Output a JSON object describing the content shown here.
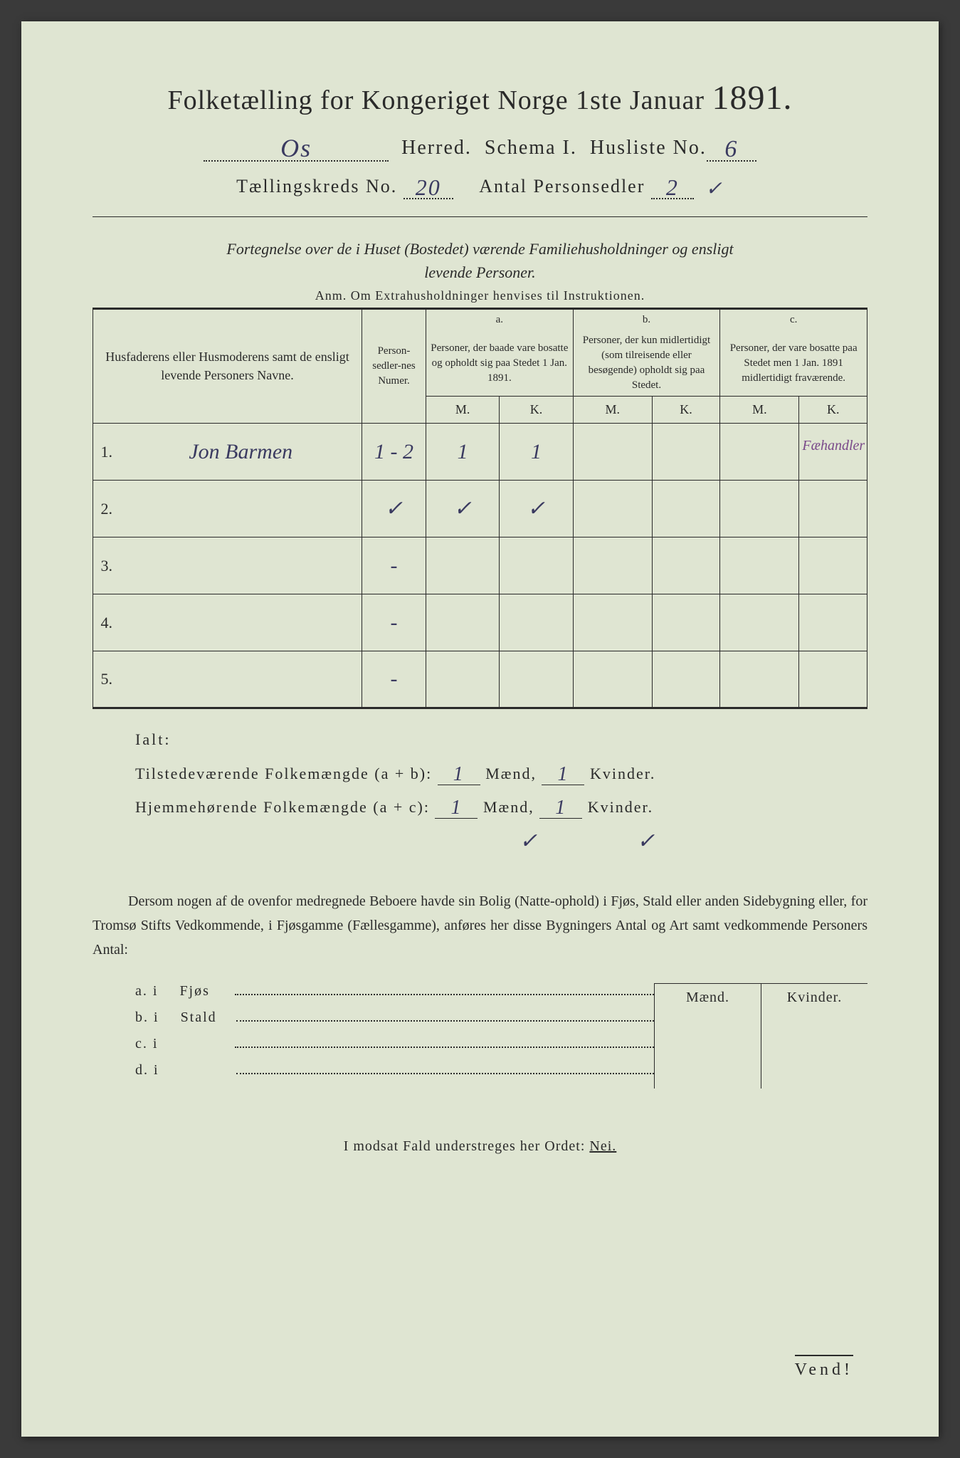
{
  "colors": {
    "paper": "#dfe5d2",
    "ink": "#2a2a2a",
    "handwriting": "#3a3a60",
    "margin_note": "#7a4a8a"
  },
  "header": {
    "title_prefix": "Folketælling for Kongeriget Norge 1ste Januar",
    "year": "1891.",
    "herred_label": "Herred.",
    "herred_value": "Os",
    "schema_label": "Schema I.",
    "husliste_label": "Husliste No.",
    "husliste_value": "6",
    "kreds_label": "Tællingskreds No.",
    "kreds_value": "20",
    "antal_label": "Antal Personsedler",
    "antal_value": "2",
    "antal_check": "✓"
  },
  "subtitle": {
    "line1": "Fortegnelse over de i Huset (Bostedet) værende Familiehusholdninger og ensligt",
    "line2": "levende Personer.",
    "anm": "Anm.  Om Extrahusholdninger henvises til Instruktionen."
  },
  "table": {
    "col_names": "Husfaderens eller Husmoderens samt de ensligt levende Personers Navne.",
    "col_numer": "Person-sedler-nes Numer.",
    "col_a_top": "a.",
    "col_a": "Personer, der baade vare bosatte og opholdt sig paa Stedet 1 Jan. 1891.",
    "col_b_top": "b.",
    "col_b": "Personer, der kun midlertidigt (som tilreisende eller besøgende) opholdt sig paa Stedet.",
    "col_c_top": "c.",
    "col_c": "Personer, der vare bosatte paa Stedet men 1 Jan. 1891 midlertidigt fraværende.",
    "m": "M.",
    "k": "K.",
    "rows": [
      {
        "n": "1.",
        "name": "Jon Barmen",
        "numer": "1 - 2",
        "aM": "1",
        "aK": "1",
        "bM": "",
        "bK": "",
        "cM": "",
        "cK": "",
        "margin": "Fæhandler"
      },
      {
        "n": "2.",
        "name": "",
        "numer": "✓",
        "aM": "✓",
        "aK": "✓",
        "bM": "",
        "bK": "",
        "cM": "",
        "cK": "",
        "margin": ""
      },
      {
        "n": "3.",
        "name": "",
        "numer": "-",
        "aM": "",
        "aK": "",
        "bM": "",
        "bK": "",
        "cM": "",
        "cK": "",
        "margin": ""
      },
      {
        "n": "4.",
        "name": "",
        "numer": "-",
        "aM": "",
        "aK": "",
        "bM": "",
        "bK": "",
        "cM": "",
        "cK": "",
        "margin": ""
      },
      {
        "n": "5.",
        "name": "",
        "numer": "-",
        "aM": "",
        "aK": "",
        "bM": "",
        "bK": "",
        "cM": "",
        "cK": "",
        "margin": ""
      }
    ]
  },
  "totals": {
    "ialt": "Ialt:",
    "line1_a": "Tilstedeværende Folkemængde (a + b):",
    "line2_a": "Hjemmehørende Folkemængde (a + c):",
    "mend": "Mænd,",
    "kvinder": "Kvinder.",
    "v1m": "1",
    "v1k": "1",
    "v2m": "1",
    "v2k": "1",
    "check1": "✓",
    "check2": "✓"
  },
  "paragraph": "Dersom nogen af de ovenfor medregnede Beboere havde sin Bolig (Natte-ophold) i Fjøs, Stald eller anden Sidebygning eller, for Tromsø Stifts Vedkommende, i Fjøsgamme (Fællesgamme), anføres her disse Bygningers Antal og Art samt vedkommende Personers Antal:",
  "lodging": {
    "mend": "Mænd.",
    "kvinder": "Kvinder.",
    "rows": [
      {
        "l": "a.  i",
        "txt": "Fjøs"
      },
      {
        "l": "b.  i",
        "txt": "Stald"
      },
      {
        "l": "c.  i",
        "txt": ""
      },
      {
        "l": "d.  i",
        "txt": ""
      }
    ]
  },
  "nei": "I modsat Fald understreges her Ordet:",
  "nei_word": "Nei.",
  "vend": "Vend!"
}
